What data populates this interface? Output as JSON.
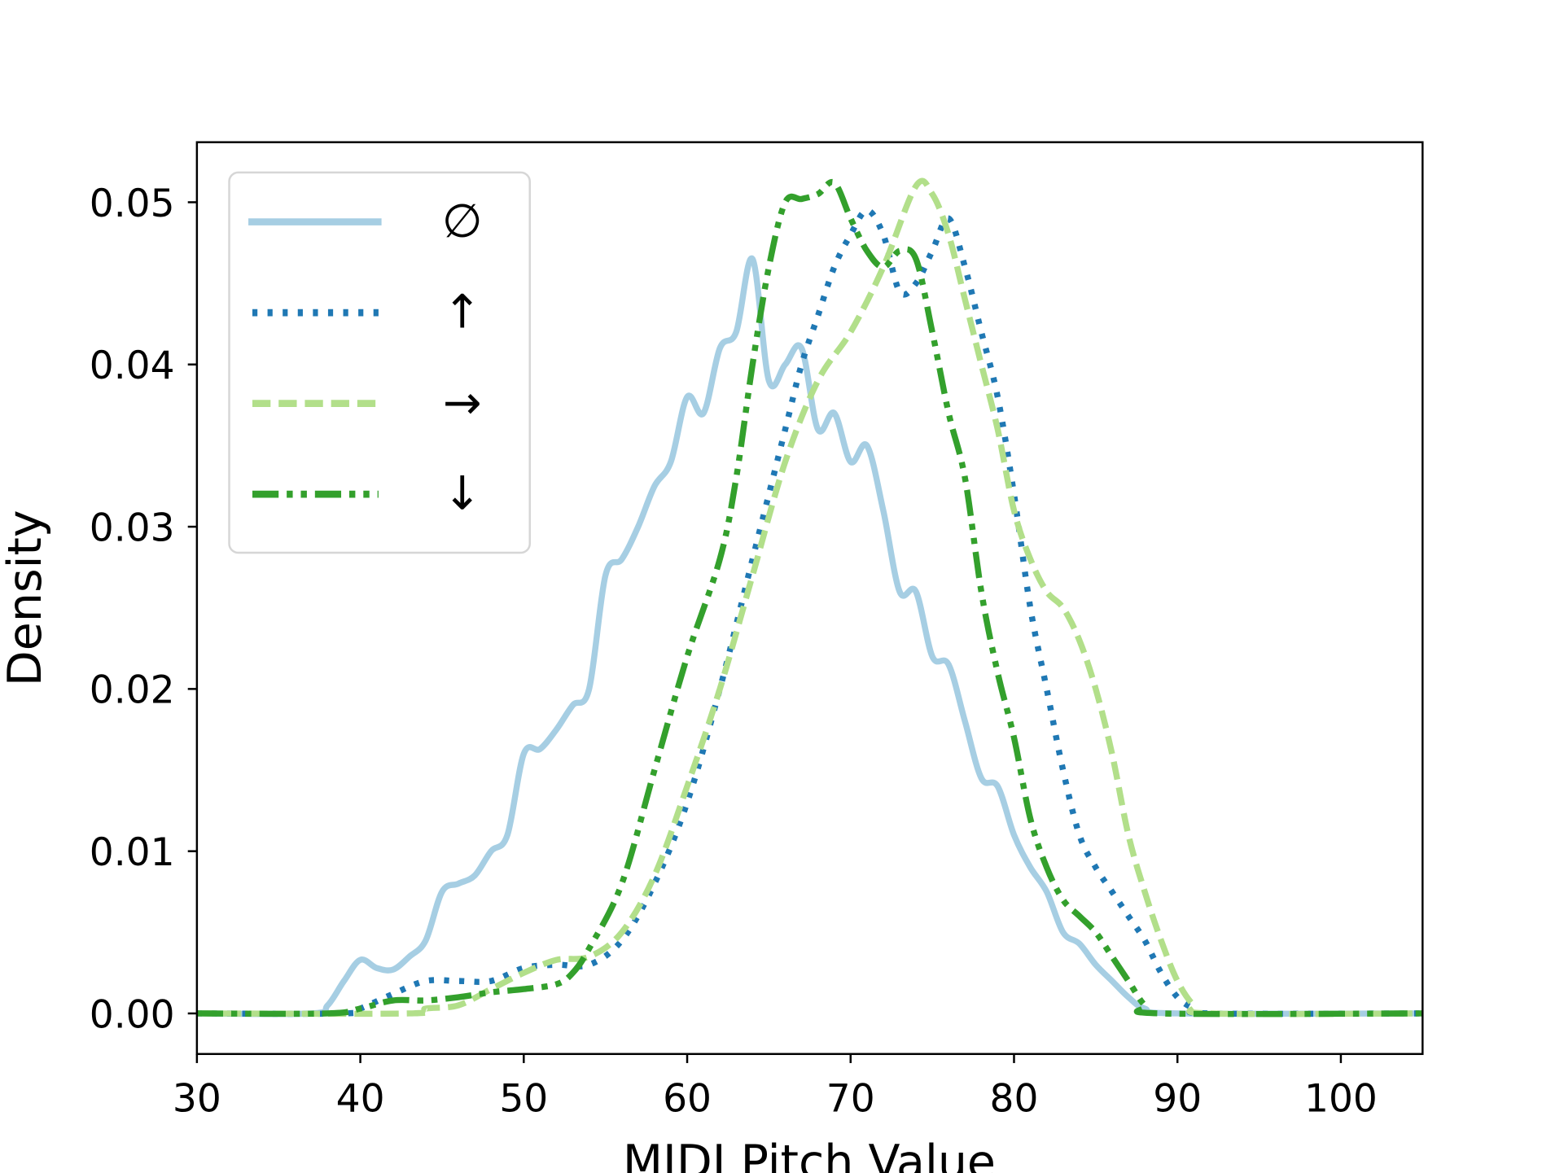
{
  "chart_data": {
    "type": "line",
    "title": "",
    "xlabel": "MIDI Pitch Value",
    "ylabel": "Density",
    "xlim": [
      30,
      105
    ],
    "ylim": [
      -0.0025,
      0.0537
    ],
    "xticks": [
      30,
      40,
      50,
      60,
      70,
      80,
      90,
      100
    ],
    "xtick_labels": [
      "30",
      "40",
      "50",
      "60",
      "70",
      "80",
      "90",
      "100"
    ],
    "yticks": [
      0,
      0.01,
      0.02,
      0.03,
      0.04,
      0.05
    ],
    "ytick_labels": [
      "0.00",
      "0.01",
      "0.02",
      "0.03",
      "0.04",
      "0.05"
    ],
    "grid": false,
    "legend_position": "top-left",
    "series": [
      {
        "name": "∅",
        "color": "#a6cee3",
        "style": "solid",
        "x": [
          30,
          37,
          38,
          39,
          40,
          41,
          42,
          43,
          44,
          45,
          46,
          47,
          48,
          49,
          50,
          51,
          52,
          53,
          54,
          55,
          56,
          57,
          58,
          59,
          60,
          61,
          62,
          63,
          64,
          65,
          66,
          67,
          68,
          69,
          70,
          71,
          72,
          73,
          74,
          75,
          76,
          77,
          78,
          79,
          80,
          81,
          82,
          83,
          84,
          85,
          86,
          87,
          88,
          90,
          105
        ],
        "y": [
          0,
          0,
          0.0005,
          0.002,
          0.0033,
          0.0028,
          0.0027,
          0.0035,
          0.0045,
          0.0075,
          0.008,
          0.0085,
          0.01,
          0.011,
          0.016,
          0.0163,
          0.0175,
          0.019,
          0.02,
          0.027,
          0.028,
          0.03,
          0.0325,
          0.034,
          0.038,
          0.037,
          0.041,
          0.042,
          0.0465,
          0.039,
          0.04,
          0.041,
          0.036,
          0.037,
          0.034,
          0.035,
          0.031,
          0.026,
          0.026,
          0.022,
          0.0215,
          0.018,
          0.0145,
          0.014,
          0.011,
          0.009,
          0.0075,
          0.005,
          0.0043,
          0.003,
          0.002,
          0.001,
          0.0003,
          0,
          0
        ]
      },
      {
        "name": "↑",
        "color": "#1f78b4",
        "style": "dotted",
        "x": [
          30,
          39,
          40,
          42,
          44,
          46,
          48,
          50,
          52,
          54,
          56,
          58,
          60,
          62,
          64,
          66,
          67,
          68,
          69,
          70,
          71,
          72,
          73,
          74,
          75,
          76,
          77,
          78,
          79,
          80,
          81,
          82,
          83,
          84,
          85,
          86,
          87,
          88,
          89,
          90,
          91,
          92,
          105
        ],
        "y": [
          0,
          0,
          0.0003,
          0.0012,
          0.002,
          0.002,
          0.002,
          0.0028,
          0.003,
          0.003,
          0.0045,
          0.008,
          0.013,
          0.02,
          0.028,
          0.036,
          0.04,
          0.043,
          0.046,
          0.048,
          0.0495,
          0.048,
          0.0445,
          0.045,
          0.047,
          0.049,
          0.046,
          0.042,
          0.038,
          0.032,
          0.025,
          0.02,
          0.015,
          0.011,
          0.009,
          0.0075,
          0.006,
          0.0045,
          0.0025,
          0.001,
          0.0003,
          0,
          0
        ]
      },
      {
        "name": "→",
        "color": "#b2df8a",
        "style": "dashed",
        "x": [
          30,
          43,
          44,
          46,
          48,
          50,
          52,
          54,
          56,
          58,
          60,
          62,
          64,
          66,
          68,
          70,
          72,
          74,
          75,
          76,
          77,
          78,
          79,
          80,
          81,
          82,
          83,
          84,
          85,
          86,
          87,
          88,
          89,
          90,
          91,
          92,
          105
        ],
        "y": [
          0,
          0,
          0.0003,
          0.0005,
          0.0015,
          0.0025,
          0.0033,
          0.0035,
          0.005,
          0.0085,
          0.014,
          0.02,
          0.027,
          0.034,
          0.039,
          0.042,
          0.046,
          0.051,
          0.0505,
          0.048,
          0.044,
          0.04,
          0.036,
          0.031,
          0.028,
          0.026,
          0.025,
          0.023,
          0.02,
          0.016,
          0.011,
          0.0075,
          0.0045,
          0.002,
          0.0005,
          0,
          0
        ]
      },
      {
        "name": "↓",
        "color": "#33a02c",
        "style": "dashdot",
        "x": [
          30,
          38,
          40,
          42,
          44,
          46,
          48,
          50,
          52,
          53,
          54,
          56,
          58,
          60,
          62,
          63,
          64,
          65,
          66,
          67,
          68,
          69,
          70,
          71,
          72,
          73,
          74,
          75,
          76,
          77,
          78,
          79,
          80,
          81,
          82,
          83,
          84,
          85,
          86,
          87,
          88,
          89,
          105
        ],
        "y": [
          0,
          0,
          0.0003,
          0.0008,
          0.0008,
          0.001,
          0.0013,
          0.0015,
          0.0018,
          0.0025,
          0.004,
          0.008,
          0.015,
          0.022,
          0.028,
          0.033,
          0.04,
          0.046,
          0.05,
          0.0502,
          0.0505,
          0.0512,
          0.049,
          0.047,
          0.046,
          0.047,
          0.0465,
          0.042,
          0.037,
          0.033,
          0.026,
          0.021,
          0.017,
          0.012,
          0.009,
          0.007,
          0.006,
          0.005,
          0.0035,
          0.002,
          0.0005,
          0,
          0
        ]
      }
    ]
  }
}
